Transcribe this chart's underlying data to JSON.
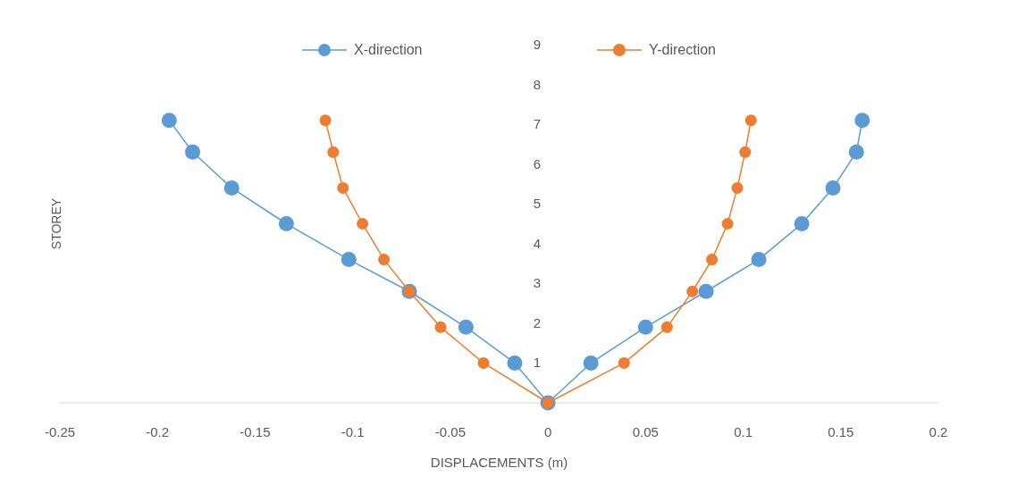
{
  "chart_data": {
    "type": "line",
    "xlabel": "DISPLACEMENTS (m)",
    "ylabel": "STOREY",
    "xlim": [
      -0.25,
      0.2
    ],
    "xticks": [
      -0.25,
      -0.2,
      -0.15,
      -0.1,
      -0.05,
      0,
      0.05,
      0.1,
      0.15,
      0.2
    ],
    "ylim": [
      0,
      9
    ],
    "yticks": [
      1,
      2,
      3,
      4,
      5,
      6,
      7,
      8,
      9
    ],
    "grid": false,
    "legend": "top",
    "marker": "circle",
    "line_style": "solid",
    "series": [
      {
        "name": "X-direction",
        "color": "#5b9bd5",
        "x": [
          -0.194,
          -0.182,
          -0.162,
          -0.134,
          -0.102,
          -0.071,
          -0.042,
          -0.017,
          0,
          0.022,
          0.05,
          0.081,
          0.108,
          0.13,
          0.146,
          0.158,
          0.161
        ],
        "values": [
          7.1,
          6.3,
          5.4,
          4.5,
          3.6,
          2.8,
          1.9,
          1,
          0,
          1,
          1.9,
          2.8,
          3.6,
          4.5,
          5.4,
          6.3,
          7.1
        ]
      },
      {
        "name": "Y-direction",
        "color": "#ed7d31",
        "x": [
          -0.114,
          -0.11,
          -0.105,
          -0.095,
          -0.084,
          -0.071,
          -0.055,
          -0.033,
          0,
          0.039,
          0.061,
          0.074,
          0.084,
          0.092,
          0.097,
          0.101,
          0.104
        ],
        "values": [
          7.1,
          6.3,
          5.4,
          4.5,
          3.6,
          2.8,
          1.9,
          1,
          0,
          1,
          1.9,
          2.8,
          3.6,
          4.5,
          5.4,
          6.3,
          7.1
        ]
      }
    ]
  }
}
